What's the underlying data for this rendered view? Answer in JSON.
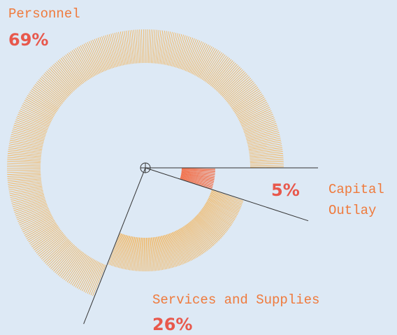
{
  "chart_data": {
    "type": "radial",
    "categories": [
      "Capital Outlay",
      "Services and Supplies",
      "Personnel"
    ],
    "values": [
      5,
      26,
      69
    ],
    "value_labels": [
      "5%",
      "26%",
      "69%"
    ],
    "colors": [
      "#f2704a",
      "#f5b04e",
      "#f5b04e"
    ]
  }
}
